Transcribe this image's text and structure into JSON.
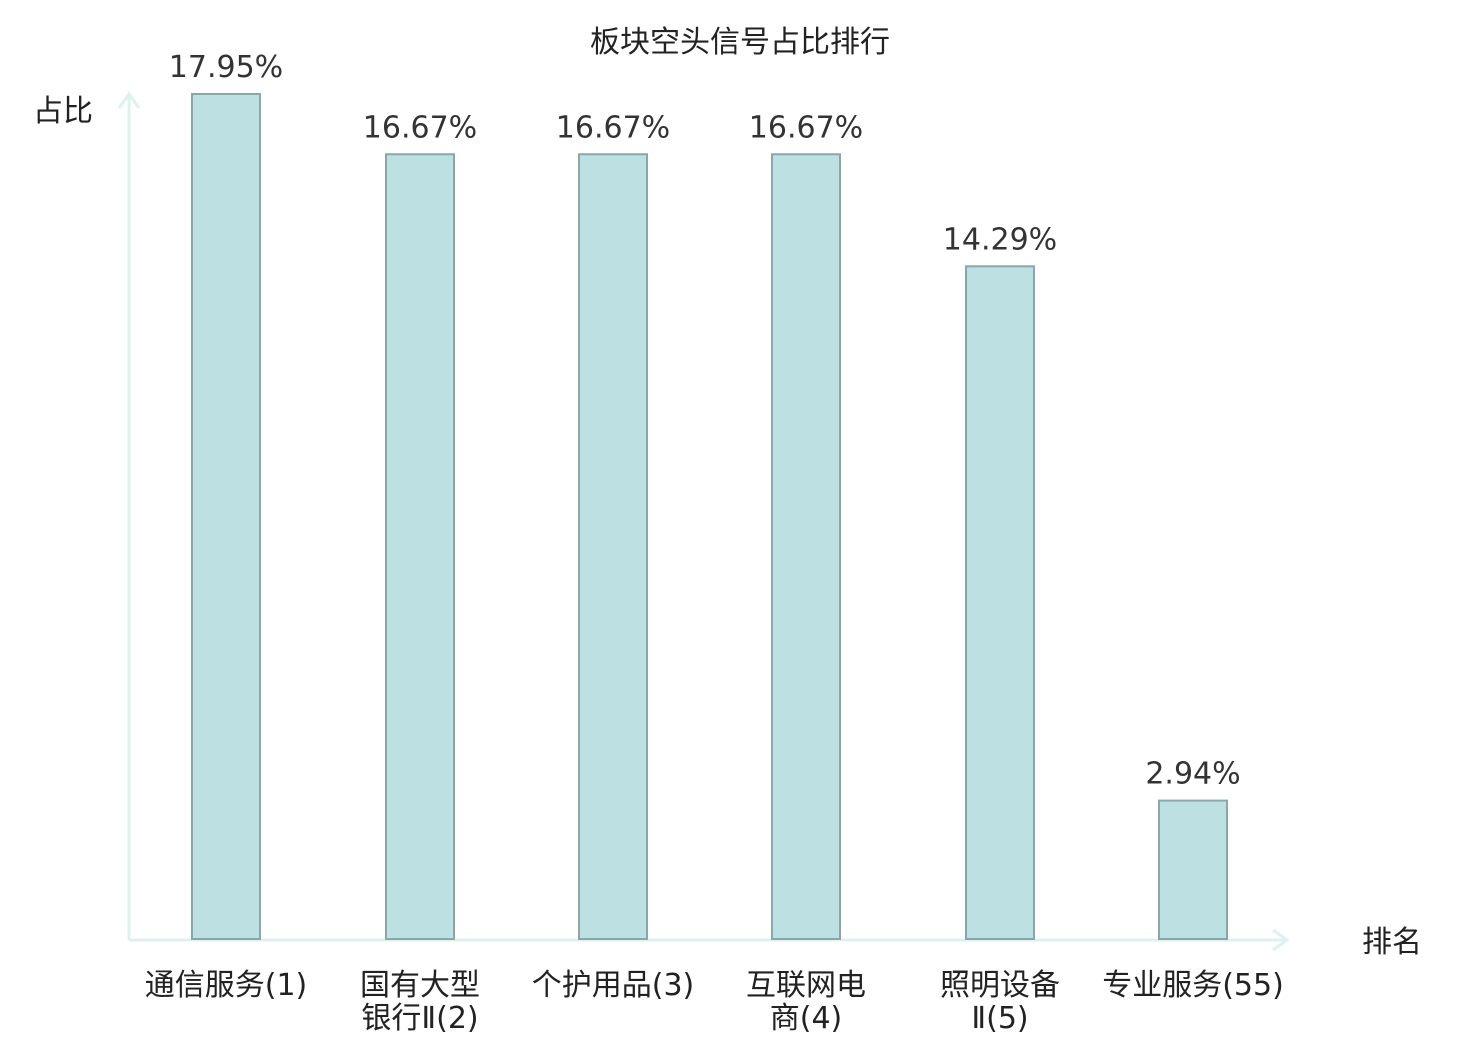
{
  "chart_data": {
    "type": "bar",
    "title": "板块空头信号占比排行",
    "ylabel": "占比",
    "xlabel": "排名",
    "categories": [
      [
        "通信服务(1)"
      ],
      [
        "国有大型",
        "银行Ⅱ(2)"
      ],
      [
        "个护用品(3)"
      ],
      [
        "互联网电",
        "商(4)"
      ],
      [
        "照明设备",
        "Ⅱ(5)"
      ],
      [
        "专业服务(55)"
      ]
    ],
    "values": [
      17.95,
      16.67,
      16.67,
      16.67,
      14.29,
      2.94
    ],
    "value_labels": [
      "17.95%",
      "16.67%",
      "16.67%",
      "16.67%",
      "14.29%",
      "2.94%"
    ],
    "highlight_index": 5,
    "ylim": [
      0,
      17.95
    ],
    "grid": false,
    "legend": "none",
    "colors": {
      "bar_fill": "#bde0e3",
      "bar_stroke": "#8aa6a9",
      "axis": "#dff1ee",
      "highlight_label": "#e8191d",
      "text": "#222222"
    }
  }
}
